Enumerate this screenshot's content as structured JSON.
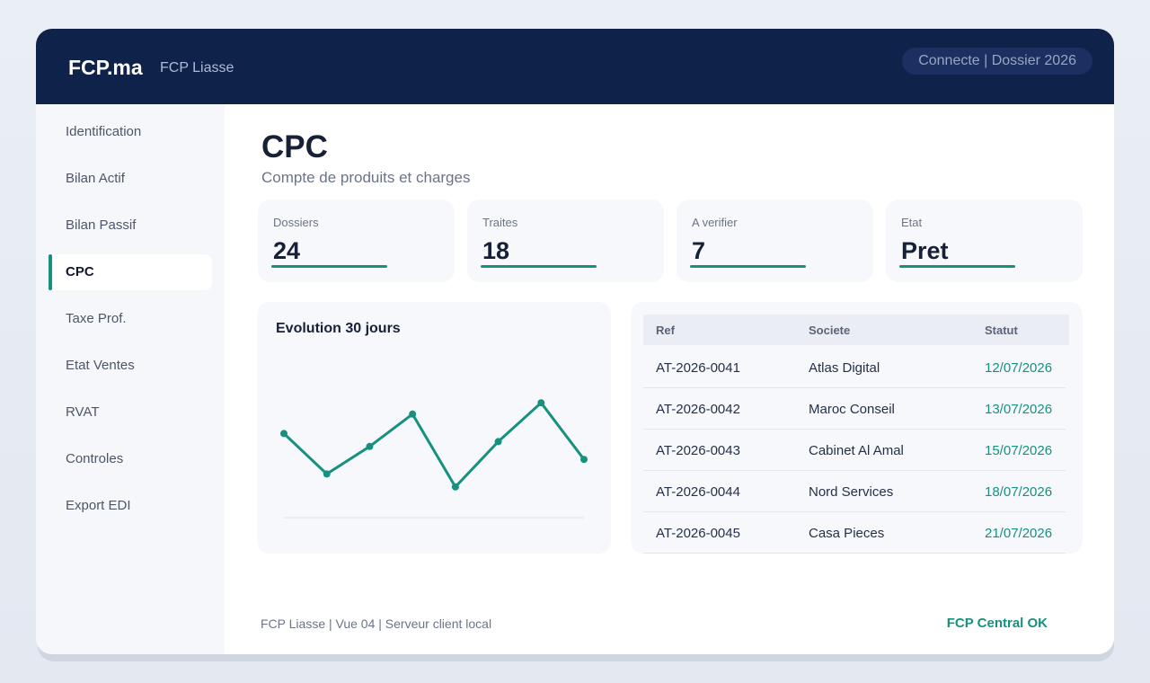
{
  "header": {
    "brand": "FCP.ma",
    "app_name": "FCP Liasse",
    "status": "Connecte | Dossier 2026"
  },
  "sidebar": {
    "items": [
      {
        "label": "Identification",
        "active": false
      },
      {
        "label": "Bilan Actif",
        "active": false
      },
      {
        "label": "Bilan Passif",
        "active": false
      },
      {
        "label": "CPC",
        "active": true
      },
      {
        "label": "Taxe Prof.",
        "active": false
      },
      {
        "label": "Etat Ventes",
        "active": false
      },
      {
        "label": "RVAT",
        "active": false
      },
      {
        "label": "Controles",
        "active": false
      },
      {
        "label": "Export EDI",
        "active": false
      }
    ]
  },
  "page": {
    "title": "CPC",
    "subtitle": "Compte de produits et charges"
  },
  "kpis": [
    {
      "label": "Dossiers",
      "value": "24"
    },
    {
      "label": "Traites",
      "value": "18"
    },
    {
      "label": "A verifier",
      "value": "7"
    },
    {
      "label": "Etat",
      "value": "Pret"
    }
  ],
  "chart": {
    "title": "Evolution 30 jours"
  },
  "chart_data": {
    "type": "line",
    "title": "Evolution 30 jours",
    "xlabel": "",
    "ylabel": "",
    "grid": false,
    "y_axis_labels": false,
    "series": [
      {
        "values": [
          52,
          27,
          44,
          64,
          19,
          47,
          71,
          36
        ]
      }
    ],
    "ylim": [
      0,
      100
    ],
    "color": "#17907f"
  },
  "table": {
    "headers": [
      "Ref",
      "Societe",
      "Statut"
    ],
    "rows": [
      [
        "AT-2026-0041",
        "Atlas Digital",
        "12/07/2026"
      ],
      [
        "AT-2026-0042",
        "Maroc Conseil",
        "13/07/2026"
      ],
      [
        "AT-2026-0043",
        "Cabinet Al Amal",
        "15/07/2026"
      ],
      [
        "AT-2026-0044",
        "Nord Services",
        "18/07/2026"
      ],
      [
        "AT-2026-0045",
        "Casa Pieces",
        "21/07/2026"
      ]
    ]
  },
  "footer": {
    "text": "FCP Liasse | Vue 04 | Serveur client local",
    "status": "FCP Central OK"
  },
  "colors": {
    "header_bg": "#0e224a",
    "accent": "#17907f",
    "card_bg": "#f6f8fc"
  }
}
